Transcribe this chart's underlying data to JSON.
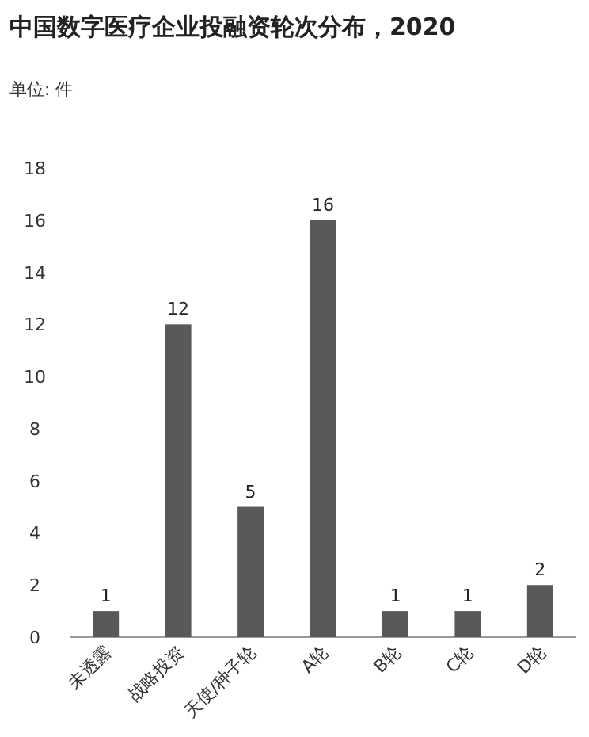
{
  "chart_data": {
    "type": "bar",
    "title": "中国数字医疗企业投融资轮次分布，2020",
    "subtitle": "单位: 件",
    "categories": [
      "未透露",
      "战略投资",
      "天使/种子轮",
      "A轮",
      "B轮",
      "C轮",
      "D轮"
    ],
    "values": [
      1,
      12,
      5,
      16,
      1,
      1,
      2
    ],
    "color": "#595959",
    "ylim": [
      0,
      18
    ],
    "yticks": [
      0,
      2,
      4,
      6,
      8,
      10,
      12,
      14,
      16,
      18
    ],
    "grid": false,
    "data_labels": true
  }
}
